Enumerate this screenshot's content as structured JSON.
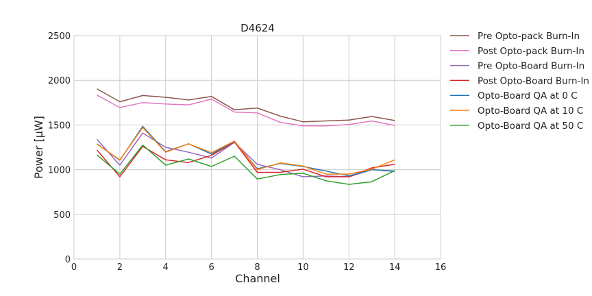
{
  "chart_data": {
    "type": "line",
    "title": "D4624",
    "xlabel": "Channel",
    "ylabel": "Power [μW]",
    "xlim": [
      0,
      16
    ],
    "ylim": [
      0,
      2500
    ],
    "xticks": [
      0,
      2,
      4,
      6,
      8,
      10,
      12,
      14,
      16
    ],
    "yticks": [
      0,
      500,
      1000,
      1500,
      2000,
      2500
    ],
    "grid": true,
    "legend_position": "outside-right",
    "x": [
      1,
      2,
      3,
      4,
      5,
      6,
      7,
      8,
      9,
      10,
      11,
      12,
      13,
      14
    ],
    "series": [
      {
        "name": "Pre Opto-pack Burn-In",
        "color": "#8c564b",
        "values": [
          1905,
          1760,
          1830,
          1810,
          1780,
          1820,
          1670,
          1690,
          1600,
          1535,
          1545,
          1555,
          1595,
          1550
        ]
      },
      {
        "name": "Post Opto-pack Burn-In",
        "color": "#e377c2",
        "values": [
          1835,
          1695,
          1750,
          1735,
          1725,
          1790,
          1645,
          1635,
          1530,
          1490,
          1490,
          1505,
          1545,
          1495
        ]
      },
      {
        "name": "Pre Opto-Board Burn-In",
        "color": "#9467bd",
        "values": [
          1340,
          1050,
          1410,
          1250,
          1195,
          1130,
          1305,
          1060,
          1000,
          920,
          930,
          920,
          1000,
          980
        ]
      },
      {
        "name": "Post Opto-Board Burn-In",
        "color": "#d62728",
        "values": [
          1220,
          920,
          1260,
          1110,
          1080,
          1160,
          1310,
          970,
          970,
          1005,
          920,
          920,
          1020,
          1060
        ]
      },
      {
        "name": "Opto-Board QA at 0 C",
        "color": "#1f77b4",
        "values": [
          1290,
          1105,
          1485,
          1200,
          1290,
          1175,
          1315,
          1010,
          1070,
          1035,
          985,
          930,
          1000,
          985
        ]
      },
      {
        "name": "Opto-Board QA at 10 C",
        "color": "#ff7f0e",
        "values": [
          1285,
          1110,
          1470,
          1195,
          1290,
          1190,
          1320,
          1000,
          1075,
          1040,
          950,
          950,
          1005,
          1110
        ]
      },
      {
        "name": "Opto-Board QA at 50 C",
        "color": "#2ca02c",
        "values": [
          1165,
          950,
          1275,
          1050,
          1120,
          1035,
          1150,
          895,
          945,
          960,
          875,
          835,
          865,
          990
        ]
      }
    ]
  }
}
